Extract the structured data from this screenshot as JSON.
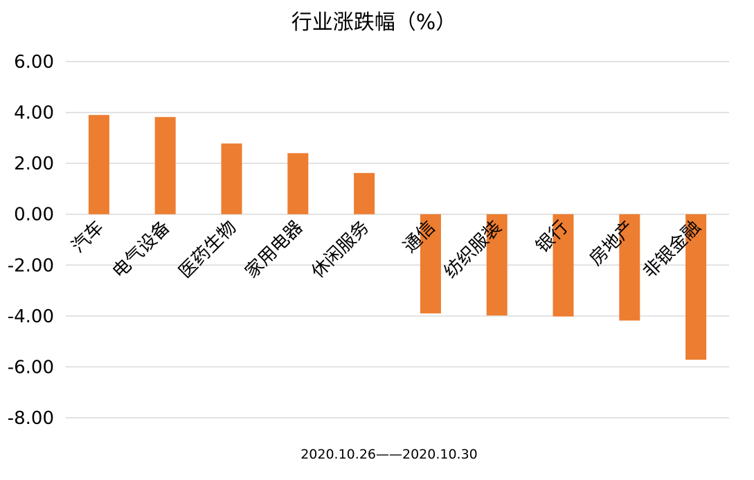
{
  "chart_data": {
    "type": "bar",
    "title": "行业涨跌幅（%）",
    "xlabel": "2020.10.26——2020.10.30",
    "ylabel": "",
    "categories": [
      "汽车",
      "电气设备",
      "医药生物",
      "家用电器",
      "休闲服务",
      "通信",
      "纺织服装",
      "银行",
      "房地产",
      "非银金融"
    ],
    "values": [
      3.9,
      3.82,
      2.78,
      2.4,
      1.62,
      -3.9,
      -3.98,
      -4.02,
      -4.18,
      -5.72
    ],
    "ylim": [
      -8,
      6
    ],
    "yticks": [
      6,
      4,
      2,
      0,
      -2,
      -4,
      -6,
      -8
    ],
    "ytick_labels": [
      "6.00",
      "4.00",
      "2.00",
      "0.00",
      "-2.00",
      "-4.00",
      "-6.00",
      "-8.00"
    ],
    "bar_color": "#ED7D31",
    "grid": true,
    "legend": "none"
  }
}
